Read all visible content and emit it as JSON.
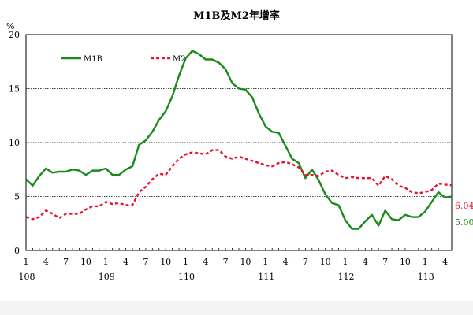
{
  "chart_data": {
    "type": "line",
    "title": "M1B及M2年增率",
    "ylabel": "%",
    "xlabel": "",
    "ylim": [
      0,
      20
    ],
    "yticks": [
      0,
      5,
      10,
      15,
      20
    ],
    "grid": "horizontal dotted at 5, 10, 15",
    "legend_placement": "top-left",
    "x_tick_labels": [
      {
        "month_index": 0,
        "month": "1",
        "year": "108"
      },
      {
        "month_index": 3,
        "month": "4"
      },
      {
        "month_index": 6,
        "month": "7"
      },
      {
        "month_index": 9,
        "month": "10"
      },
      {
        "month_index": 12,
        "month": "1",
        "year": "109"
      },
      {
        "month_index": 15,
        "month": "4"
      },
      {
        "month_index": 18,
        "month": "7"
      },
      {
        "month_index": 21,
        "month": "10"
      },
      {
        "month_index": 24,
        "month": "1",
        "year": "110"
      },
      {
        "month_index": 27,
        "month": "4"
      },
      {
        "month_index": 30,
        "month": "7"
      },
      {
        "month_index": 33,
        "month": "10"
      },
      {
        "month_index": 36,
        "month": "1",
        "year": "111"
      },
      {
        "month_index": 39,
        "month": "4"
      },
      {
        "month_index": 42,
        "month": "7"
      },
      {
        "month_index": 45,
        "month": "10"
      },
      {
        "month_index": 48,
        "month": "1",
        "year": "112"
      },
      {
        "month_index": 51,
        "month": "4"
      },
      {
        "month_index": 54,
        "month": "7"
      },
      {
        "month_index": 57,
        "month": "10"
      },
      {
        "month_index": 60,
        "month": "1",
        "year": "113"
      },
      {
        "month_index": 63,
        "month": "4"
      }
    ],
    "series": [
      {
        "name": "M1B",
        "color": "#1a8a1a",
        "style": "solid",
        "values": [
          6.6,
          6.0,
          6.9,
          7.6,
          7.2,
          7.3,
          7.3,
          7.5,
          7.4,
          7.0,
          7.4,
          7.4,
          7.6,
          7.0,
          7.0,
          7.5,
          7.8,
          9.8,
          10.2,
          11.0,
          12.1,
          12.9,
          14.3,
          16.2,
          17.8,
          18.5,
          18.2,
          17.7,
          17.7,
          17.4,
          16.8,
          15.5,
          15.0,
          14.9,
          14.2,
          12.7,
          11.5,
          11.0,
          10.9,
          9.7,
          8.5,
          8.1,
          6.7,
          7.5,
          6.5,
          5.2,
          4.4,
          4.2,
          2.8,
          2.0,
          2.0,
          2.7,
          3.3,
          2.3,
          3.7,
          2.9,
          2.8,
          3.3,
          3.1,
          3.1,
          3.6,
          4.5,
          5.4,
          4.9,
          5.0
        ]
      },
      {
        "name": "M2",
        "color": "#e8112d",
        "style": "dashed",
        "values": [
          3.1,
          2.9,
          3.1,
          3.7,
          3.4,
          3.0,
          3.4,
          3.4,
          3.4,
          3.8,
          4.1,
          4.1,
          4.5,
          4.3,
          4.4,
          4.2,
          4.2,
          5.4,
          5.9,
          6.6,
          7.1,
          7.0,
          7.8,
          8.5,
          8.9,
          9.1,
          9.0,
          8.9,
          9.3,
          9.3,
          8.7,
          8.5,
          8.7,
          8.5,
          8.3,
          8.1,
          7.9,
          7.8,
          8.1,
          8.2,
          8.0,
          7.7,
          7.0,
          7.0,
          6.9,
          7.3,
          7.4,
          7.0,
          6.7,
          6.8,
          6.7,
          6.7,
          6.7,
          6.0,
          6.9,
          6.6,
          6.0,
          5.8,
          5.4,
          5.3,
          5.4,
          5.6,
          6.2,
          6.1,
          6.04
        ]
      }
    ],
    "end_labels": {
      "M1B": "5.00",
      "M2": "6.04"
    }
  }
}
